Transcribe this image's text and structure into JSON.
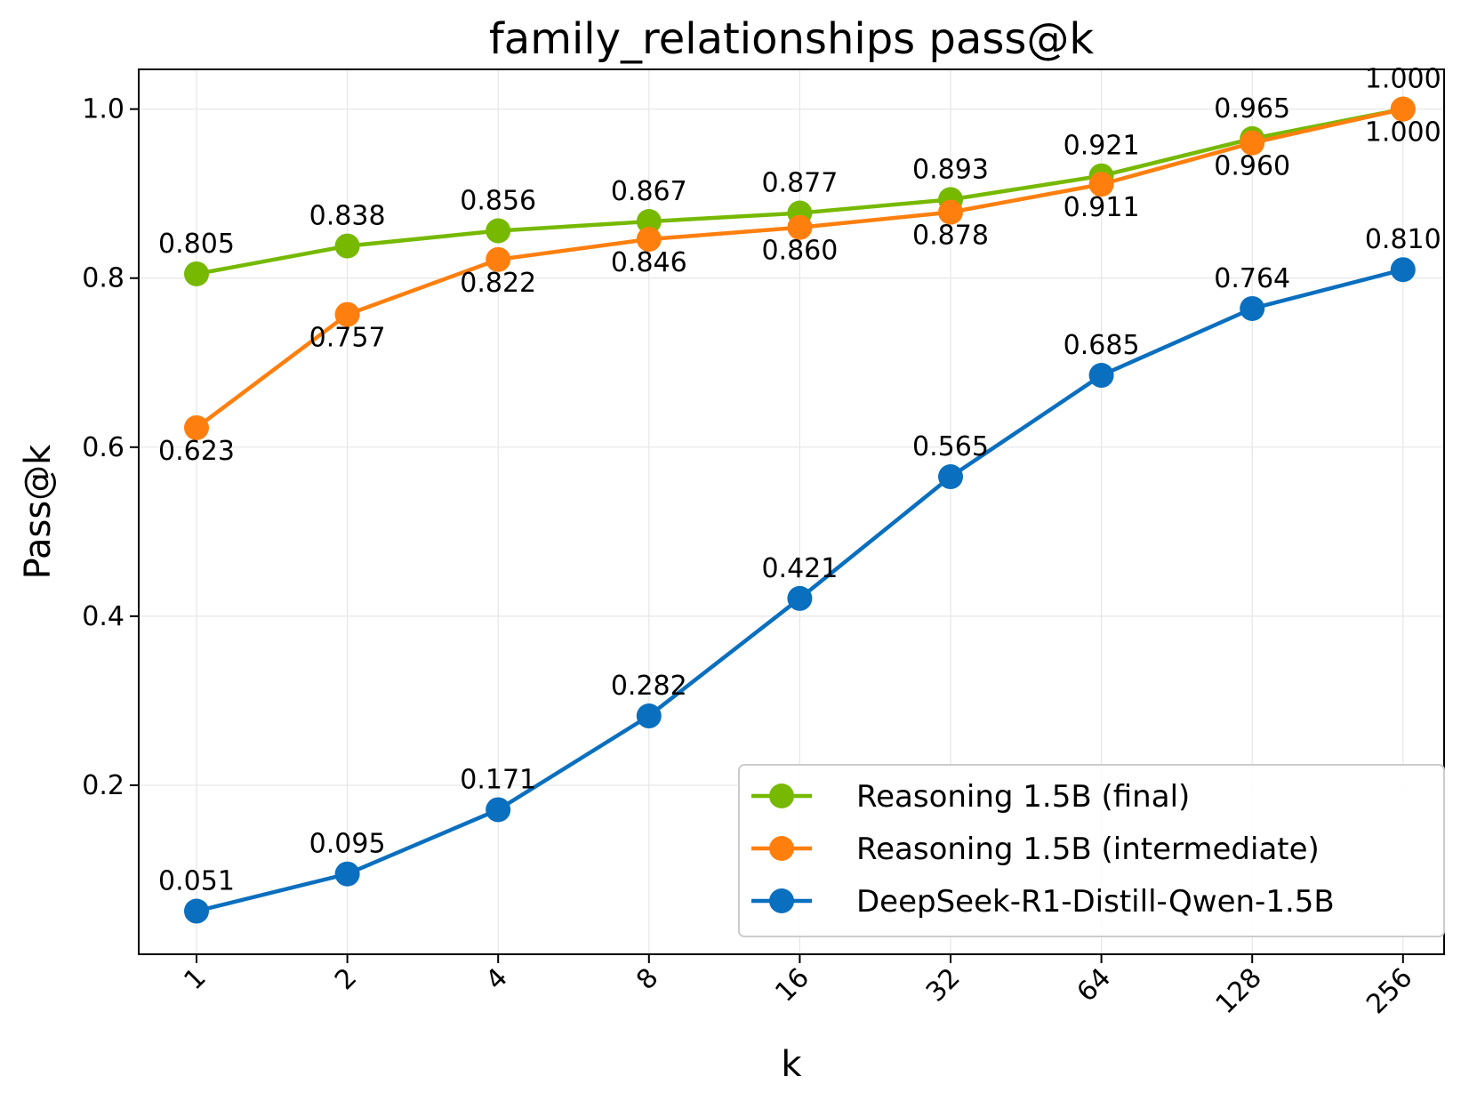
{
  "chart_data": {
    "type": "line",
    "title": "family_relationships pass@k",
    "xlabel": "k",
    "ylabel": "Pass@k",
    "categories": [
      "1",
      "2",
      "4",
      "8",
      "16",
      "32",
      "64",
      "128",
      "256"
    ],
    "ylim": [
      0.0,
      1.047
    ],
    "yticks": [
      0.2,
      0.4,
      0.6,
      0.8,
      1.0
    ],
    "ytick_labels": [
      "0.2",
      "0.4",
      "0.6",
      "0.8",
      "1.0"
    ],
    "grid": true,
    "legend_position": "lower-right",
    "series": [
      {
        "name": "Reasoning 1.5B (final)",
        "color": "#76b900",
        "values": [
          0.805,
          0.838,
          0.856,
          0.867,
          0.877,
          0.893,
          0.921,
          0.965,
          1.0
        ],
        "labels": [
          "0.805",
          "0.838",
          "0.856",
          "0.867",
          "0.877",
          "0.893",
          "0.921",
          "0.965",
          "1.000"
        ],
        "label_position": "above"
      },
      {
        "name": "Reasoning 1.5B (intermediate)",
        "color": "#ff7f0e",
        "values": [
          0.623,
          0.757,
          0.822,
          0.846,
          0.86,
          0.878,
          0.911,
          0.96,
          1.0
        ],
        "labels": [
          "0.623",
          "0.757",
          "0.822",
          "0.846",
          "0.860",
          "0.878",
          "0.911",
          "0.960",
          "1.000"
        ],
        "label_position": "below"
      },
      {
        "name": "DeepSeek-R1-Distill-Qwen-1.5B",
        "color": "#0a6fbf",
        "values": [
          0.051,
          0.095,
          0.171,
          0.282,
          0.421,
          0.565,
          0.685,
          0.764,
          0.81
        ],
        "labels": [
          "0.051",
          "0.095",
          "0.171",
          "0.282",
          "0.421",
          "0.565",
          "0.685",
          "0.764",
          "0.810"
        ],
        "label_position": "above"
      }
    ]
  }
}
